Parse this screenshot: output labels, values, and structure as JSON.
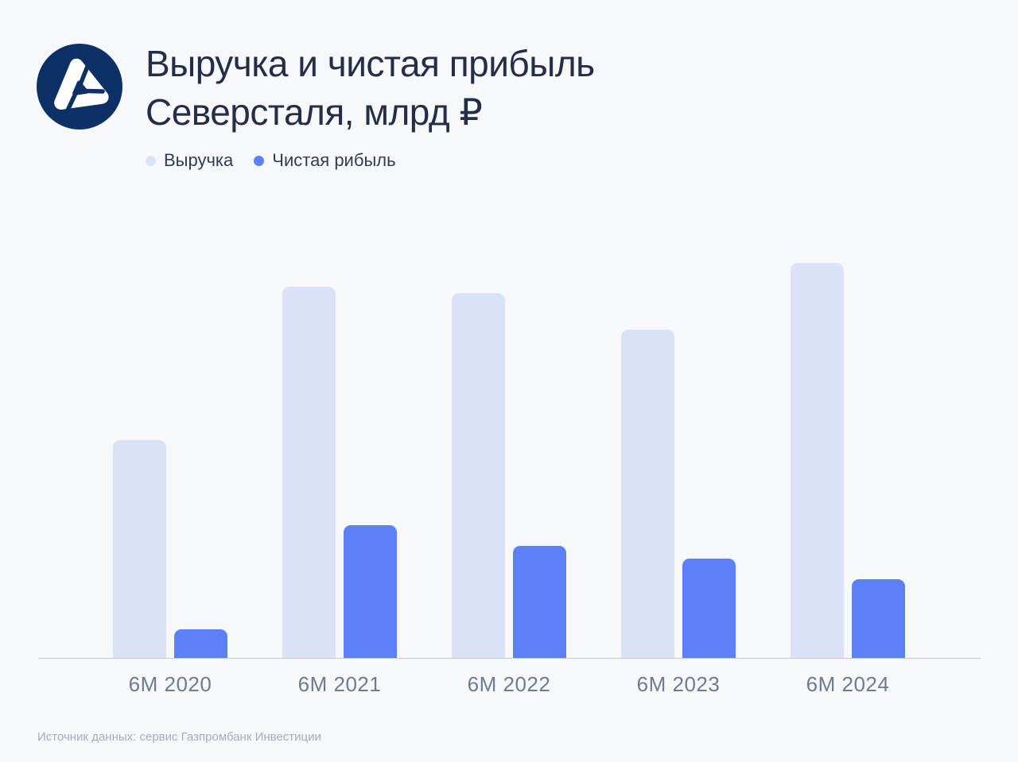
{
  "page": {
    "background": "#f7f8fa"
  },
  "header": {
    "title_line1": "Выручка и чистая прибыль",
    "title_line2": "Северсталя, млрд ₽",
    "logo_color": "#0d3166"
  },
  "footer": {
    "source": "Источник данных: сервис Газпромбанк Инвестиции"
  },
  "chart_data": {
    "type": "bar",
    "title": "Выручка и чистая прибыль Северсталя, млрд ₽",
    "unit": "млрд ₽",
    "categories": [
      "6M 2020",
      "6M 2021",
      "6M 2022",
      "6M 2023",
      "6M 2024"
    ],
    "series": [
      {
        "name": "Выручка",
        "color": "#d9e2f8",
        "values": [
          226,
          385,
          378,
          340,
          410
        ]
      },
      {
        "name": "Чистая рибыль",
        "color": "#5b80f7",
        "values": [
          30,
          138,
          116,
          103,
          82
        ]
      }
    ],
    "ylim": [
      0,
      450
    ],
    "grid": false,
    "y_axis_shown": false,
    "legend_position": "top-left",
    "x_axis_line_color": "#c6c9d1",
    "x_label_color": "#6f7a93"
  }
}
